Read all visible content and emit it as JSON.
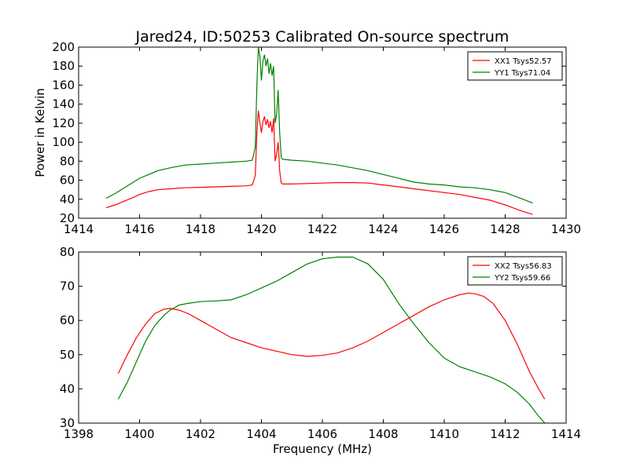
{
  "title": "Jared24, ID:50253 Calibrated On-source spectrum",
  "chart_data": [
    {
      "type": "line",
      "ylabel": "Power in Kelvin",
      "xlabel": "",
      "xlim": [
        1414,
        1430
      ],
      "ylim": [
        20,
        200
      ],
      "xticks": [
        1414,
        1416,
        1418,
        1420,
        1422,
        1424,
        1426,
        1428,
        1430
      ],
      "yticks": [
        20,
        40,
        60,
        80,
        100,
        120,
        140,
        160,
        180,
        200
      ],
      "legend_position": "top-right",
      "series": [
        {
          "name": "XX1 Tsys52.57",
          "color": "#ff0000",
          "x": [
            1414.9,
            1415.2,
            1415.5,
            1415.8,
            1416.0,
            1416.3,
            1416.6,
            1417.0,
            1417.5,
            1418.0,
            1418.5,
            1419.0,
            1419.5,
            1419.7,
            1419.8,
            1419.85,
            1419.9,
            1419.95,
            1420.0,
            1420.05,
            1420.1,
            1420.15,
            1420.2,
            1420.25,
            1420.3,
            1420.35,
            1420.4,
            1420.45,
            1420.5,
            1420.55,
            1420.6,
            1420.65,
            1420.7,
            1421.0,
            1421.5,
            1422.0,
            1422.5,
            1423.0,
            1423.5,
            1424.0,
            1424.5,
            1425.0,
            1425.5,
            1426.0,
            1426.5,
            1427.0,
            1427.5,
            1428.0,
            1428.5,
            1428.9
          ],
          "y": [
            31,
            34,
            38,
            42,
            45,
            48,
            50,
            51,
            52,
            52.5,
            53,
            53.5,
            54,
            55,
            65,
            110,
            133,
            120,
            110,
            122,
            127,
            118,
            124,
            115,
            122,
            110,
            125,
            80,
            88,
            100,
            70,
            57,
            56,
            56,
            56.5,
            57,
            57.5,
            57.5,
            57,
            55,
            53,
            51,
            49,
            47,
            45,
            42,
            39,
            34,
            28,
            24
          ]
        },
        {
          "name": "YY1 Tsys71.04",
          "color": "#008000",
          "x": [
            1414.9,
            1415.2,
            1415.5,
            1415.8,
            1416.0,
            1416.3,
            1416.6,
            1417.0,
            1417.5,
            1418.0,
            1418.5,
            1419.0,
            1419.5,
            1419.7,
            1419.8,
            1419.85,
            1419.9,
            1419.95,
            1420.0,
            1420.05,
            1420.1,
            1420.15,
            1420.2,
            1420.25,
            1420.3,
            1420.35,
            1420.4,
            1420.45,
            1420.5,
            1420.55,
            1420.6,
            1420.65,
            1420.7,
            1421.0,
            1421.5,
            1422.0,
            1422.5,
            1423.0,
            1423.5,
            1424.0,
            1424.5,
            1425.0,
            1425.5,
            1426.0,
            1426.5,
            1427.0,
            1427.5,
            1428.0,
            1428.5,
            1428.9
          ],
          "y": [
            41,
            46,
            52,
            58,
            62,
            66,
            70,
            73,
            76,
            77,
            78,
            79,
            80,
            81,
            95,
            160,
            200,
            190,
            165,
            185,
            192,
            180,
            188,
            172,
            183,
            170,
            180,
            120,
            130,
            155,
            110,
            84,
            82,
            81,
            80,
            78,
            76,
            73,
            70,
            66,
            62,
            58,
            56,
            55,
            53,
            52,
            50,
            47,
            41,
            36
          ]
        }
      ]
    },
    {
      "type": "line",
      "xlabel": "Frequency (MHz)",
      "ylabel": "",
      "xlim": [
        1398,
        1414
      ],
      "ylim": [
        30,
        80
      ],
      "xticks": [
        1398,
        1400,
        1402,
        1404,
        1406,
        1408,
        1410,
        1412,
        1414
      ],
      "yticks": [
        30,
        40,
        50,
        60,
        70,
        80
      ],
      "legend_position": "top-right",
      "series": [
        {
          "name": "XX2 Tsys56.83",
          "color": "#ff0000",
          "x": [
            1399.3,
            1399.6,
            1399.9,
            1400.2,
            1400.5,
            1400.8,
            1401.0,
            1401.3,
            1401.6,
            1402.0,
            1402.5,
            1403.0,
            1403.5,
            1404.0,
            1404.5,
            1405.0,
            1405.5,
            1406.0,
            1406.5,
            1407.0,
            1407.5,
            1408.0,
            1408.5,
            1409.0,
            1409.5,
            1410.0,
            1410.5,
            1410.8,
            1411.0,
            1411.3,
            1411.6,
            1412.0,
            1412.4,
            1412.8,
            1413.1,
            1413.3
          ],
          "y": [
            44.5,
            50,
            55,
            59,
            62,
            63.3,
            63.5,
            63,
            62,
            60,
            57.5,
            55,
            53.5,
            52,
            51,
            50,
            49.5,
            49.8,
            50.5,
            52,
            54,
            56.5,
            59,
            61.5,
            64,
            66,
            67.5,
            68,
            67.8,
            67,
            65,
            60,
            53,
            45,
            40,
            37
          ]
        },
        {
          "name": "YY2 Tsys59.66",
          "color": "#008000",
          "x": [
            1399.3,
            1399.6,
            1399.9,
            1400.2,
            1400.5,
            1400.8,
            1401.0,
            1401.3,
            1401.6,
            1402.0,
            1402.5,
            1403.0,
            1403.5,
            1404.0,
            1404.5,
            1405.0,
            1405.5,
            1406.0,
            1406.5,
            1407.0,
            1407.5,
            1408.0,
            1408.5,
            1409.0,
            1409.5,
            1410.0,
            1410.5,
            1411.0,
            1411.5,
            1412.0,
            1412.4,
            1412.8,
            1413.1,
            1413.3
          ],
          "y": [
            37,
            42,
            48,
            54,
            58.5,
            61.5,
            63,
            64.5,
            65,
            65.5,
            65.7,
            66,
            67.5,
            69.5,
            71.5,
            74,
            76.5,
            78,
            78.5,
            78.5,
            76.5,
            72,
            65,
            59,
            53.5,
            49,
            46.5,
            45,
            43.5,
            41.5,
            39,
            35.5,
            32,
            30
          ]
        }
      ]
    }
  ]
}
